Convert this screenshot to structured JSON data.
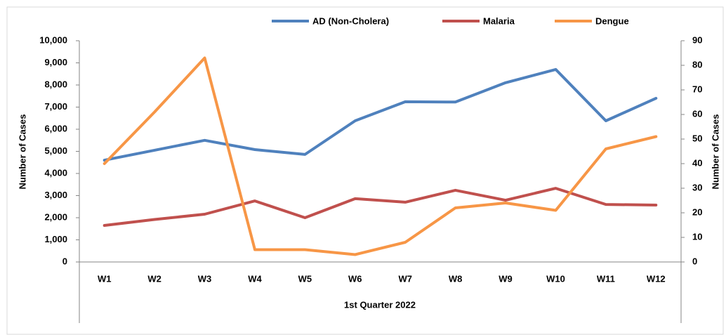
{
  "chart_data": {
    "type": "line",
    "categories": [
      "W1",
      "W2",
      "W3",
      "W4",
      "W5",
      "W6",
      "W7",
      "W8",
      "W9",
      "W10",
      "W11",
      "W12"
    ],
    "x_label": "1st Quarter 2022",
    "y_label": "Number of Cases",
    "y2_label": "Number of Cases",
    "series": [
      {
        "name": "AD (Non-Cholera)",
        "color": "#4f81bd",
        "values": [
          4600,
          5050,
          5500,
          5080,
          4860,
          6380,
          7240,
          7230,
          8100,
          8700,
          6380,
          7400
        ]
      },
      {
        "name": "Malaria",
        "color": "#c0504d",
        "values": [
          1650,
          1920,
          2160,
          2760,
          2000,
          2860,
          2700,
          3240,
          2790,
          3330,
          2600,
          2570
        ]
      },
      {
        "name": "Dengue",
        "color": "#f79646",
        "axis": "y2",
        "values": [
          40,
          61,
          83,
          5,
          5,
          3,
          8,
          22,
          24,
          21,
          46,
          51
        ]
      }
    ],
    "ylim": [
      0,
      10000
    ],
    "yticks": [
      0,
      {
        "value": 1000,
        "label": "1,000"
      },
      {
        "value": 2000,
        "label": "2,000"
      },
      {
        "value": 3000,
        "label": "3,000"
      },
      {
        "value": 4000,
        "label": "4,000"
      },
      {
        "value": 5000,
        "label": "5,000"
      },
      {
        "value": 6000,
        "label": "6,000"
      },
      {
        "value": 7000,
        "label": "7,000"
      },
      {
        "value": 8000,
        "label": "8,000"
      },
      {
        "value": 9000,
        "label": "9,000"
      },
      {
        "value": 10000,
        "label": "10,000"
      }
    ],
    "y2lim": [
      0,
      90
    ],
    "y2ticks": [
      0,
      10,
      20,
      30,
      40,
      50,
      60,
      70,
      80,
      90
    ],
    "legend": "top"
  }
}
